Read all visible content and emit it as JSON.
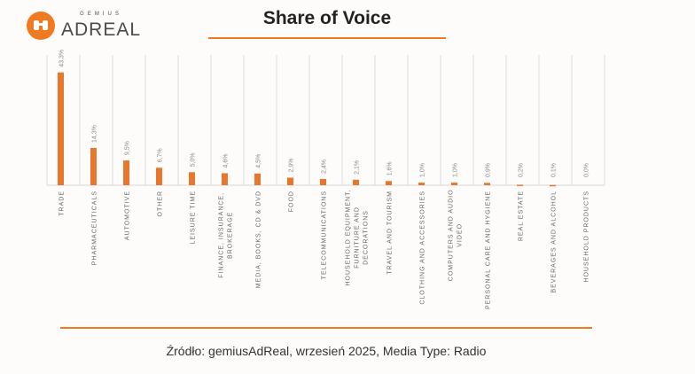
{
  "logo": {
    "top": "GEMIUS",
    "main": "ADREAL"
  },
  "title": "Share of Voice",
  "source": "Źródło: gemiusAdReal, wrzesień 2025, Media Type: Radio",
  "chart_data": {
    "type": "bar",
    "title": "Share of Voice",
    "xlabel": "",
    "ylabel": "",
    "ylim": [
      0,
      50
    ],
    "color": "#e8772e",
    "categories": [
      [
        "TRADE"
      ],
      [
        "PHARMACEUTICALS"
      ],
      [
        "AUTOMOTIVE"
      ],
      [
        "OTHER"
      ],
      [
        "LEISURE TIME"
      ],
      [
        "FINANCE, INSURANCE,",
        "BROKERAGE"
      ],
      [
        "MEDIA, BOOKS, CD & DVD"
      ],
      [
        "FOOD"
      ],
      [
        "TELECOMMUNICATIONS"
      ],
      [
        "HOUSEHOLD EQUIPMENT,",
        "FURNITURE AND",
        "DECORATIONS"
      ],
      [
        "TRAVEL AND TOURISM"
      ],
      [
        "CLOTHING AND ACCESSORIES"
      ],
      [
        "COMPUTERS AND AUDIO",
        "VIDEO"
      ],
      [
        "PERSONAL CARE AND HYGIENE"
      ],
      [
        "REAL ESTATE"
      ],
      [
        "BEVERAGES AND ALCOHOL"
      ],
      [
        "HOUSEHOLD PRODUCTS"
      ]
    ],
    "values": [
      43.3,
      14.3,
      9.5,
      6.7,
      5.0,
      4.6,
      4.5,
      2.9,
      2.4,
      2.1,
      1.6,
      1.0,
      1.0,
      0.9,
      0.2,
      0.1,
      0.0
    ],
    "labels": [
      "43,3%",
      "14,3%",
      "9,5%",
      "6,7%",
      "5,0%",
      "4,6%",
      "4,5%",
      "2,9%",
      "2,4%",
      "2,1%",
      "1,6%",
      "1,0%",
      "1,0%",
      "0,9%",
      "0,2%",
      "0,1%",
      "0,0%"
    ]
  }
}
